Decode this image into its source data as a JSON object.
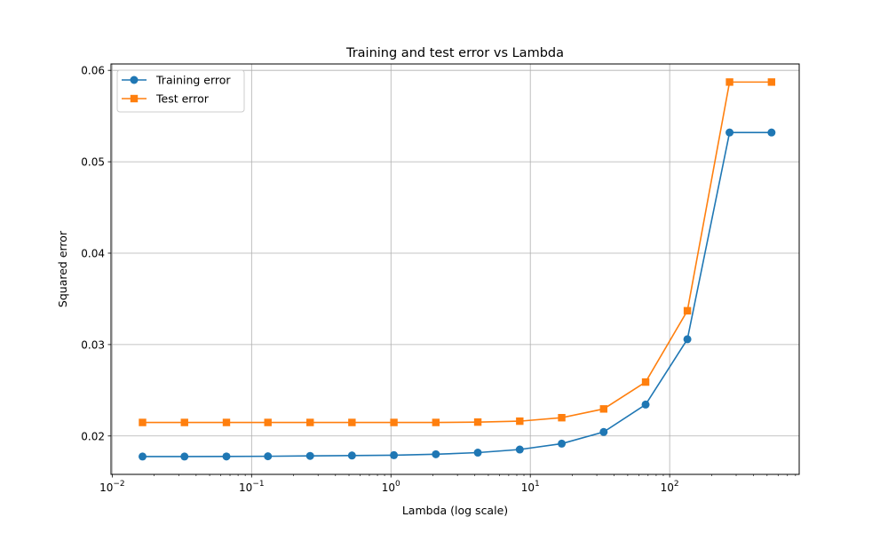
{
  "chart_data": {
    "type": "line",
    "title": "Training and test error vs Lambda",
    "xlabel": "Lambda (log scale)",
    "ylabel": "Squared error",
    "xscale": "log",
    "xlim": [
      0.0098,
      850
    ],
    "ylim": [
      0.0158,
      0.0607
    ],
    "grid": true,
    "legend_position": "upper-left",
    "x": [
      0.0165,
      0.033,
      0.066,
      0.131,
      0.263,
      0.525,
      1.05,
      2.1,
      4.2,
      8.4,
      16.8,
      33.6,
      67.2,
      134,
      269,
      538
    ],
    "series": [
      {
        "name": "Training error",
        "color": "#1f77b4",
        "marker": "circle",
        "values": [
          0.01775,
          0.01775,
          0.01776,
          0.01778,
          0.01782,
          0.01786,
          0.0179,
          0.018,
          0.01818,
          0.01852,
          0.01916,
          0.02044,
          0.02344,
          0.03058,
          0.0532,
          0.0532
        ]
      },
      {
        "name": "Test error",
        "color": "#ff7f0e",
        "marker": "square",
        "values": [
          0.02148,
          0.02148,
          0.02148,
          0.02148,
          0.02148,
          0.02148,
          0.02148,
          0.02148,
          0.02152,
          0.02162,
          0.022,
          0.02296,
          0.0259,
          0.0337,
          0.05872,
          0.05872
        ]
      }
    ],
    "xticks": [
      {
        "value": 0.01,
        "base": "10",
        "exp": "−2"
      },
      {
        "value": 0.1,
        "base": "10",
        "exp": "−1"
      },
      {
        "value": 1,
        "base": "10",
        "exp": "0"
      },
      {
        "value": 10,
        "base": "10",
        "exp": "1"
      },
      {
        "value": 100,
        "base": "10",
        "exp": "2"
      }
    ],
    "yticks": [
      {
        "value": 0.02,
        "label": "0.02"
      },
      {
        "value": 0.03,
        "label": "0.03"
      },
      {
        "value": 0.04,
        "label": "0.04"
      },
      {
        "value": 0.05,
        "label": "0.05"
      },
      {
        "value": 0.06,
        "label": "0.06"
      }
    ]
  }
}
